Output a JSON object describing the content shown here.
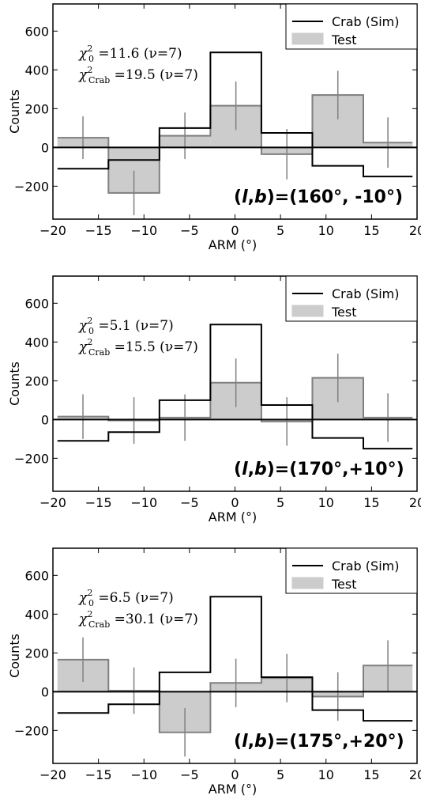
{
  "chart_data": [
    {
      "type": "bar",
      "xlabel": "ARM (°)",
      "ylabel": "Counts",
      "xlim": [
        -20,
        20
      ],
      "ylim": [
        -370,
        740
      ],
      "xticks": [
        -20,
        -15,
        -10,
        -5,
        0,
        5,
        10,
        15,
        20
      ],
      "xtick_labels": [
        "−20",
        "−15",
        "−10",
        "−5",
        "0",
        "5",
        "10",
        "15",
        "20"
      ],
      "yticks": [
        -200,
        0,
        200,
        400,
        600
      ],
      "ytick_labels": [
        "−200",
        "0",
        "200",
        "400",
        "600"
      ],
      "bin_edges": [
        -19.5,
        -13.9,
        -8.3,
        -2.7,
        2.9,
        8.5,
        14.1,
        19.5
      ],
      "series": [
        {
          "name": "Crab (Sim)",
          "style": "step",
          "color": "#000000",
          "values": [
            -110,
            -65,
            100,
            490,
            75,
            -95,
            -150
          ]
        },
        {
          "name": "Test",
          "style": "filled-histogram",
          "color": "#cccccc",
          "values": [
            50,
            -235,
            60,
            215,
            -35,
            270,
            25
          ],
          "error": [
            110,
            115,
            120,
            125,
            130,
            125,
            130
          ]
        }
      ],
      "legend": {
        "position": "top-right",
        "entries": [
          "Crab (Sim)",
          "Test"
        ]
      },
      "annotations": [
        {
          "sym": "χ",
          "sup": "2",
          "sub": "0",
          "text": " =11.6 (ν=7)"
        },
        {
          "sym": "χ",
          "sup": "2",
          "sub": "Crab",
          "text": " =19.5 (ν=7)"
        }
      ],
      "coord_label": {
        "open": "(",
        "l": "l",
        "sep": ",",
        "b": "b",
        "close": ")=(160°, -10°)"
      }
    },
    {
      "type": "bar",
      "xlabel": "ARM (°)",
      "ylabel": "Counts",
      "xlim": [
        -20,
        20
      ],
      "ylim": [
        -370,
        740
      ],
      "xticks": [
        -20,
        -15,
        -10,
        -5,
        0,
        5,
        10,
        15,
        20
      ],
      "xtick_labels": [
        "−20",
        "−15",
        "−10",
        "−5",
        "0",
        "5",
        "10",
        "15",
        "20"
      ],
      "yticks": [
        -200,
        0,
        200,
        400,
        600
      ],
      "ytick_labels": [
        "−200",
        "0",
        "200",
        "400",
        "600"
      ],
      "bin_edges": [
        -19.5,
        -13.9,
        -8.3,
        -2.7,
        2.9,
        8.5,
        14.1,
        19.5
      ],
      "series": [
        {
          "name": "Crab (Sim)",
          "style": "step",
          "color": "#000000",
          "values": [
            -110,
            -65,
            100,
            490,
            75,
            -95,
            -150
          ]
        },
        {
          "name": "Test",
          "style": "filled-histogram",
          "color": "#cccccc",
          "values": [
            15,
            -5,
            10,
            190,
            -10,
            215,
            10
          ],
          "error": [
            115,
            120,
            120,
            125,
            125,
            125,
            125
          ]
        }
      ],
      "legend": {
        "position": "top-right",
        "entries": [
          "Crab (Sim)",
          "Test"
        ]
      },
      "annotations": [
        {
          "sym": "χ",
          "sup": "2",
          "sub": "0",
          "text": " =5.1 (ν=7)"
        },
        {
          "sym": "χ",
          "sup": "2",
          "sub": "Crab",
          "text": " =15.5 (ν=7)"
        }
      ],
      "coord_label": {
        "open": "(",
        "l": "l",
        "sep": ",",
        "b": "b",
        "close": ")=(170°,+10°)"
      }
    },
    {
      "type": "bar",
      "xlabel": "ARM (°)",
      "ylabel": "Counts",
      "xlim": [
        -20,
        20
      ],
      "ylim": [
        -370,
        740
      ],
      "xticks": [
        -20,
        -15,
        -10,
        -5,
        0,
        5,
        10,
        15,
        20
      ],
      "xtick_labels": [
        "−20",
        "−15",
        "−10",
        "−5",
        "0",
        "5",
        "10",
        "15",
        "20"
      ],
      "yticks": [
        -200,
        0,
        200,
        400,
        600
      ],
      "ytick_labels": [
        "−200",
        "0",
        "200",
        "400",
        "600"
      ],
      "bin_edges": [
        -19.5,
        -13.9,
        -8.3,
        -2.7,
        2.9,
        8.5,
        14.1,
        19.5
      ],
      "series": [
        {
          "name": "Crab (Sim)",
          "style": "step",
          "color": "#000000",
          "values": [
            -110,
            -65,
            100,
            490,
            75,
            -95,
            -150
          ]
        },
        {
          "name": "Test",
          "style": "filled-histogram",
          "color": "#cccccc",
          "values": [
            165,
            5,
            -210,
            45,
            70,
            -25,
            135
          ],
          "error": [
            115,
            120,
            125,
            125,
            125,
            125,
            130
          ]
        }
      ],
      "legend": {
        "position": "top-right",
        "entries": [
          "Crab (Sim)",
          "Test"
        ]
      },
      "annotations": [
        {
          "sym": "χ",
          "sup": "2",
          "sub": "0",
          "text": " =6.5 (ν=7)"
        },
        {
          "sym": "χ",
          "sup": "2",
          "sub": "Crab",
          "text": " =30.1 (ν=7)"
        }
      ],
      "coord_label": {
        "open": "(",
        "l": "l",
        "sep": ",",
        "b": "b",
        "close": ")=(175°,+20°)"
      }
    }
  ]
}
